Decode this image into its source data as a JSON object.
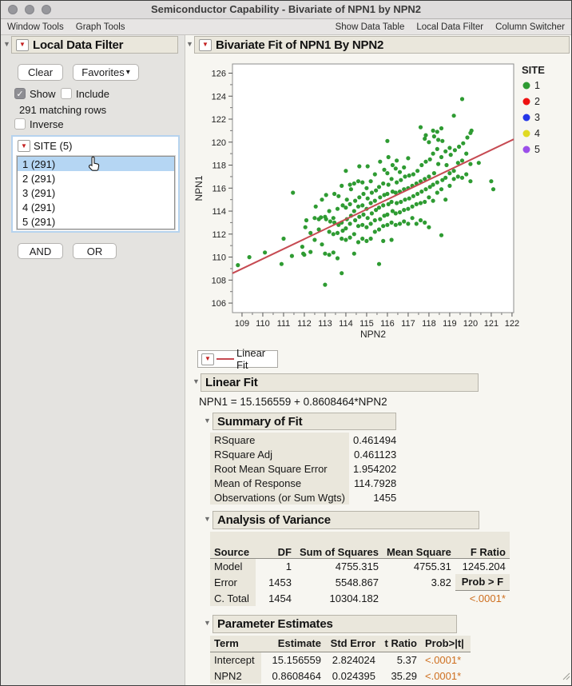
{
  "window": {
    "title": "Semiconductor Capability - Bivariate of NPN1 by NPN2"
  },
  "menu": {
    "left": [
      "Window Tools",
      "Graph Tools"
    ],
    "right": [
      "Show Data Table",
      "Local Data Filter",
      "Column Switcher"
    ]
  },
  "icons": {
    "red_triangle": "▼",
    "disclosure": "▼",
    "caret_down": "▾",
    "check": "✓"
  },
  "filter": {
    "title": "Local Data Filter",
    "clear_label": "Clear",
    "favorites_label": "Favorites",
    "show_label": "Show",
    "include_label": "Include",
    "matching_rows": "291 matching rows",
    "inverse_label": "Inverse",
    "group_title": "SITE (5)",
    "items": [
      {
        "label": "1 (291)",
        "selected": true
      },
      {
        "label": "2 (291)",
        "selected": false
      },
      {
        "label": "3 (291)",
        "selected": false
      },
      {
        "label": "4 (291)",
        "selected": false
      },
      {
        "label": "5 (291)",
        "selected": false
      }
    ],
    "and_label": "AND",
    "or_label": "OR"
  },
  "report": {
    "title": "Bivariate Fit of NPN1 By NPN2",
    "fit_button_label": "Linear Fit",
    "linear_fit": {
      "title": "Linear Fit",
      "equation": "NPN1 = 15.156559 + 0.8608464*NPN2"
    },
    "summary": {
      "title": "Summary of Fit",
      "rows": [
        [
          "RSquare",
          "0.461494"
        ],
        [
          "RSquare Adj",
          "0.461123"
        ],
        [
          "Root Mean Square Error",
          "1.954202"
        ],
        [
          "Mean of Response",
          "114.7928"
        ],
        [
          "Observations (or Sum Wgts)",
          "1455"
        ]
      ]
    },
    "anova": {
      "title": "Analysis of Variance",
      "headers": [
        "Source",
        "DF",
        "Sum of\nSquares",
        "Mean Square",
        "F Ratio"
      ],
      "rows": [
        [
          "Model",
          "1",
          "4755.315",
          "4755.31",
          "1245.204"
        ],
        [
          "Error",
          "1453",
          "5548.867",
          "3.82",
          ""
        ],
        [
          "C. Total",
          "1454",
          "10304.182",
          "",
          ""
        ]
      ],
      "prob_header": "Prob > F",
      "prob_value": "<.0001*"
    },
    "params": {
      "title": "Parameter Estimates",
      "headers": [
        "Term",
        "Estimate",
        "Std Error",
        "t Ratio",
        "Prob>|t|"
      ],
      "rows": [
        [
          "Intercept",
          "15.156559",
          "2.824024",
          "5.37",
          "<.0001*"
        ],
        [
          "NPN2",
          "0.8608464",
          "0.024395",
          "35.29",
          "<.0001*"
        ]
      ]
    }
  },
  "chart_data": {
    "type": "scatter",
    "title": "Bivariate Fit of NPN1 By NPN2",
    "xlabel": "NPN2",
    "ylabel": "NPN1",
    "xlim": [
      108.54,
      122.08
    ],
    "ylim": [
      105.17,
      126.8
    ],
    "xticks": [
      109,
      110,
      111,
      112,
      113,
      114,
      115,
      116,
      117,
      118,
      119,
      120,
      121,
      122
    ],
    "yticks": [
      106,
      108,
      110,
      112,
      114,
      116,
      118,
      120,
      122,
      124,
      126
    ],
    "grid": false,
    "point_color": "#2e9b32",
    "legend": {
      "title": "SITE",
      "position": "right",
      "entries": [
        {
          "label": "1",
          "color": "#2e9b32"
        },
        {
          "label": "2",
          "color": "#ee1111"
        },
        {
          "label": "3",
          "color": "#2436e8"
        },
        {
          "label": "4",
          "color": "#e0da22"
        },
        {
          "label": "5",
          "color": "#9b4fe9"
        }
      ]
    },
    "fit_line": {
      "label": "Linear Fit",
      "intercept": 15.156559,
      "slope": 0.8608464,
      "color": "#c64a52"
    },
    "points": [
      [
        108.8,
        109.3
      ],
      [
        109.35,
        110.0
      ],
      [
        110.1,
        110.4
      ],
      [
        110.9,
        109.4
      ],
      [
        111.0,
        111.6
      ],
      [
        111.45,
        115.6
      ],
      [
        111.4,
        110.1
      ],
      [
        111.9,
        110.9
      ],
      [
        111.95,
        110.3
      ],
      [
        112.0,
        110.2
      ],
      [
        112.05,
        112.6
      ],
      [
        112.1,
        113.2
      ],
      [
        112.3,
        110.45
      ],
      [
        112.3,
        112.1
      ],
      [
        112.5,
        111.5
      ],
      [
        112.5,
        113.4
      ],
      [
        112.55,
        114.4
      ],
      [
        112.7,
        112.4
      ],
      [
        112.7,
        113.3
      ],
      [
        112.85,
        111.1
      ],
      [
        112.8,
        113.45
      ],
      [
        112.85,
        115.0
      ],
      [
        113.0,
        107.6
      ],
      [
        113.0,
        110.3
      ],
      [
        113.05,
        113.3
      ],
      [
        113.0,
        113.5
      ],
      [
        113.05,
        115.4
      ],
      [
        113.2,
        110.2
      ],
      [
        113.2,
        112.2
      ],
      [
        113.25,
        113.1
      ],
      [
        113.2,
        114.0
      ],
      [
        113.4,
        110.4
      ],
      [
        113.4,
        112.0
      ],
      [
        113.45,
        113.0
      ],
      [
        113.4,
        113.4
      ],
      [
        113.45,
        115.5
      ],
      [
        113.6,
        109.9
      ],
      [
        113.6,
        112.1
      ],
      [
        113.65,
        112.8
      ],
      [
        113.6,
        114.2
      ],
      [
        113.65,
        115.3
      ],
      [
        113.8,
        108.6
      ],
      [
        113.8,
        111.6
      ],
      [
        113.85,
        112.3
      ],
      [
        113.8,
        113.0
      ],
      [
        113.85,
        114.5
      ],
      [
        113.8,
        116.2
      ],
      [
        114.0,
        111.5
      ],
      [
        114.0,
        112.5
      ],
      [
        114.05,
        113.3
      ],
      [
        114.0,
        114.3
      ],
      [
        114.05,
        115.0
      ],
      [
        114.0,
        117.5
      ],
      [
        114.2,
        111.7
      ],
      [
        114.2,
        112.9
      ],
      [
        114.25,
        113.6
      ],
      [
        114.2,
        114.6
      ],
      [
        114.25,
        115.9
      ],
      [
        114.2,
        116.3
      ],
      [
        114.4,
        110.3
      ],
      [
        114.4,
        112.0
      ],
      [
        114.45,
        113.2
      ],
      [
        114.4,
        114.0
      ],
      [
        114.45,
        114.9
      ],
      [
        114.4,
        116.4
      ],
      [
        114.6,
        111.3
      ],
      [
        114.6,
        112.7
      ],
      [
        114.65,
        113.5
      ],
      [
        114.6,
        114.4
      ],
      [
        114.65,
        115.2
      ],
      [
        114.6,
        116.6
      ],
      [
        114.65,
        117.9
      ],
      [
        114.8,
        111.6
      ],
      [
        114.8,
        112.8
      ],
      [
        114.85,
        113.7
      ],
      [
        114.8,
        114.5
      ],
      [
        114.85,
        115.5
      ],
      [
        114.8,
        116.5
      ],
      [
        115.0,
        111.4
      ],
      [
        115.0,
        112.6
      ],
      [
        115.05,
        113.4
      ],
      [
        115.0,
        114.2
      ],
      [
        115.05,
        115.1
      ],
      [
        115.0,
        116.0
      ],
      [
        115.05,
        117.9
      ],
      [
        115.2,
        111.6
      ],
      [
        115.2,
        112.9
      ],
      [
        115.25,
        113.8
      ],
      [
        115.2,
        114.7
      ],
      [
        115.25,
        115.6
      ],
      [
        115.2,
        116.6
      ],
      [
        115.4,
        112.2
      ],
      [
        115.4,
        113.2
      ],
      [
        115.45,
        114.1
      ],
      [
        115.4,
        114.9
      ],
      [
        115.45,
        115.8
      ],
      [
        115.4,
        117.2
      ],
      [
        115.6,
        109.4
      ],
      [
        115.6,
        112.4
      ],
      [
        115.65,
        113.3
      ],
      [
        115.6,
        114.3
      ],
      [
        115.65,
        115.2
      ],
      [
        115.6,
        116.1
      ],
      [
        115.65,
        118.3
      ],
      [
        115.8,
        111.4
      ],
      [
        115.8,
        112.7
      ],
      [
        115.85,
        113.6
      ],
      [
        115.8,
        114.5
      ],
      [
        115.85,
        115.4
      ],
      [
        115.8,
        116.4
      ],
      [
        115.85,
        117.6
      ],
      [
        116.0,
        112.8
      ],
      [
        116.0,
        113.7
      ],
      [
        116.05,
        114.6
      ],
      [
        116.0,
        115.5
      ],
      [
        116.05,
        116.3
      ],
      [
        116.0,
        117.3
      ],
      [
        116.05,
        118.7
      ],
      [
        116.0,
        120.1
      ],
      [
        116.2,
        111.5
      ],
      [
        116.2,
        113.0
      ],
      [
        116.25,
        114.0
      ],
      [
        116.2,
        114.8
      ],
      [
        116.25,
        115.7
      ],
      [
        116.2,
        116.8
      ],
      [
        116.25,
        118.0
      ],
      [
        116.4,
        112.8
      ],
      [
        116.4,
        113.8
      ],
      [
        116.45,
        114.7
      ],
      [
        116.4,
        115.6
      ],
      [
        116.45,
        116.5
      ],
      [
        116.4,
        117.7
      ],
      [
        116.45,
        118.4
      ],
      [
        116.6,
        112.9
      ],
      [
        116.6,
        113.9
      ],
      [
        116.65,
        114.8
      ],
      [
        116.6,
        115.7
      ],
      [
        116.65,
        116.7
      ],
      [
        116.6,
        117.4
      ],
      [
        116.8,
        113.1
      ],
      [
        116.8,
        114.1
      ],
      [
        116.85,
        115.0
      ],
      [
        116.8,
        115.9
      ],
      [
        116.85,
        117.0
      ],
      [
        116.8,
        117.8
      ],
      [
        117.0,
        112.9
      ],
      [
        117.0,
        114.2
      ],
      [
        117.05,
        115.1
      ],
      [
        117.0,
        116.0
      ],
      [
        117.05,
        117.1
      ],
      [
        117.0,
        118.6
      ],
      [
        117.2,
        113.4
      ],
      [
        117.2,
        114.4
      ],
      [
        117.25,
        115.3
      ],
      [
        117.2,
        116.2
      ],
      [
        117.25,
        117.2
      ],
      [
        117.4,
        112.9
      ],
      [
        117.4,
        114.6
      ],
      [
        117.45,
        115.5
      ],
      [
        117.4,
        116.4
      ],
      [
        117.45,
        117.5
      ],
      [
        117.6,
        113.2
      ],
      [
        117.6,
        114.7
      ],
      [
        117.65,
        115.7
      ],
      [
        117.6,
        116.6
      ],
      [
        117.65,
        118.0
      ],
      [
        117.6,
        121.3
      ],
      [
        117.8,
        113.0
      ],
      [
        117.8,
        114.8
      ],
      [
        117.85,
        115.9
      ],
      [
        117.8,
        116.8
      ],
      [
        117.85,
        118.3
      ],
      [
        117.8,
        120.3
      ],
      [
        117.85,
        120.6
      ],
      [
        118.0,
        112.6
      ],
      [
        118.0,
        115.2
      ],
      [
        118.05,
        116.1
      ],
      [
        118.0,
        117.0
      ],
      [
        118.05,
        118.5
      ],
      [
        118.0,
        120.0
      ],
      [
        118.2,
        114.9
      ],
      [
        118.2,
        116.3
      ],
      [
        118.25,
        117.3
      ],
      [
        118.2,
        119.0
      ],
      [
        118.25,
        120.5
      ],
      [
        118.2,
        121.0
      ],
      [
        118.4,
        115.6
      ],
      [
        118.4,
        116.5
      ],
      [
        118.45,
        118.1
      ],
      [
        118.4,
        119.4
      ],
      [
        118.45,
        120.2
      ],
      [
        118.4,
        120.9
      ],
      [
        118.6,
        111.9
      ],
      [
        118.6,
        115.9
      ],
      [
        118.65,
        116.7
      ],
      [
        118.6,
        118.7
      ],
      [
        118.65,
        120.1
      ],
      [
        118.6,
        121.2
      ],
      [
        118.8,
        115.0
      ],
      [
        118.8,
        116.9
      ],
      [
        118.85,
        118.0
      ],
      [
        118.8,
        119.2
      ],
      [
        119.0,
        116.2
      ],
      [
        119.0,
        117.3
      ],
      [
        119.05,
        118.9
      ],
      [
        119.0,
        119.5
      ],
      [
        119.2,
        116.8
      ],
      [
        119.2,
        117.5
      ],
      [
        119.25,
        119.3
      ],
      [
        119.2,
        122.3
      ],
      [
        119.4,
        117.0
      ],
      [
        119.4,
        118.2
      ],
      [
        119.45,
        119.6
      ],
      [
        119.6,
        116.9
      ],
      [
        119.6,
        118.4
      ],
      [
        119.65,
        119.9
      ],
      [
        119.6,
        123.75
      ],
      [
        119.8,
        117.2
      ],
      [
        119.8,
        119.0
      ],
      [
        119.85,
        120.4
      ],
      [
        120.0,
        116.6
      ],
      [
        120.0,
        118.1
      ],
      [
        120.05,
        121.0
      ],
      [
        120.0,
        120.8
      ],
      [
        120.4,
        118.2
      ],
      [
        121.0,
        116.6
      ],
      [
        121.1,
        115.9
      ]
    ]
  }
}
